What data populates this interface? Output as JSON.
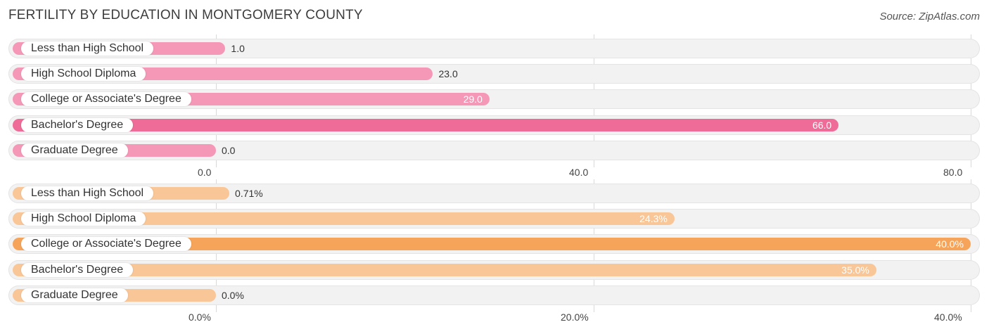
{
  "header": {
    "title": "Fertility by Education in Montgomery County",
    "source": "Source: ZipAtlas.com"
  },
  "chart_data": [
    {
      "type": "bar",
      "orientation": "horizontal",
      "title": "Fertility by Education in Montgomery County",
      "categories": [
        "Less than High School",
        "High School Diploma",
        "College or Associate's Degree",
        "Bachelor's Degree",
        "Graduate Degree"
      ],
      "values": [
        1.0,
        23.0,
        29.0,
        66.0,
        0.0
      ],
      "value_labels": [
        "1.0",
        "23.0",
        "29.0",
        "66.0",
        "0.0"
      ],
      "highlight_index": 3,
      "xlim": [
        0,
        80
      ],
      "ticks": [
        0,
        40,
        80
      ],
      "tick_labels": [
        "0.0",
        "40.0",
        "80.0"
      ],
      "colors": {
        "bar": "#f598b8",
        "highlight": "#ef6b98"
      }
    },
    {
      "type": "bar",
      "orientation": "horizontal",
      "categories": [
        "Less than High School",
        "High School Diploma",
        "College or Associate's Degree",
        "Bachelor's Degree",
        "Graduate Degree"
      ],
      "values": [
        0.71,
        24.3,
        40.0,
        35.0,
        0.0
      ],
      "value_labels": [
        "0.71%",
        "24.3%",
        "40.0%",
        "35.0%",
        "0.0%"
      ],
      "highlight_index": 2,
      "xlim": [
        0,
        40
      ],
      "ticks": [
        0,
        20,
        40
      ],
      "tick_labels": [
        "0.0%",
        "20.0%",
        "40.0%"
      ],
      "colors": {
        "bar": "#f9c697",
        "highlight": "#f6a45a"
      }
    }
  ]
}
